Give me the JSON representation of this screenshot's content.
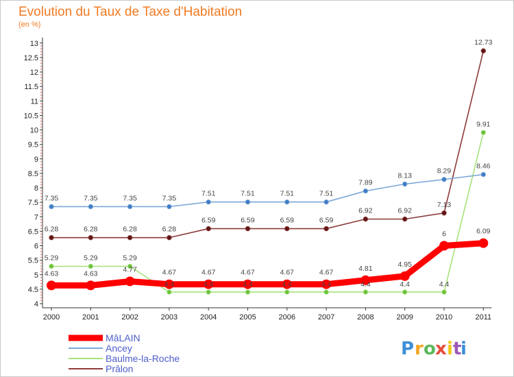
{
  "chart_data": {
    "type": "line",
    "title": "Evolution du Taux de Taxe d'Habitation",
    "unit_label": "(en %)",
    "x": [
      "2000",
      "2001",
      "2002",
      "2003",
      "2004",
      "2005",
      "2006",
      "2007",
      "2008",
      "2009",
      "2010",
      "2011"
    ],
    "ylim": [
      4,
      13
    ],
    "y_ticks": [
      "4",
      "4.5",
      "5",
      "5.5",
      "6",
      "6.5",
      "7",
      "7.5",
      "8",
      "8.5",
      "9",
      "9.5",
      "10",
      "10.5",
      "11",
      "11.5",
      "12",
      "12.5",
      "13"
    ],
    "grid": false,
    "legend_position": "bottom-left",
    "series": [
      {
        "name": "MâLAIN",
        "color": "#ff0000",
        "width": 9,
        "values": [
          4.63,
          4.63,
          4.77,
          4.67,
          4.67,
          4.67,
          4.67,
          4.67,
          4.81,
          4.95,
          6,
          6.09
        ],
        "labels": [
          "4.63",
          "4.63",
          "4.77",
          "4.67",
          "4.67",
          "4.67",
          "4.67",
          "4.67",
          "4.81",
          "4.95",
          "6",
          "6.09"
        ]
      },
      {
        "name": "Ancey",
        "color": "#7ba7d8",
        "width": 1.6,
        "values": [
          7.35,
          7.35,
          7.35,
          7.35,
          7.51,
          7.51,
          7.51,
          7.51,
          7.89,
          8.13,
          8.29,
          8.46
        ],
        "labels": [
          "7.35",
          "7.35",
          "7.35",
          "7.35",
          "7.51",
          "7.51",
          "7.51",
          "7.51",
          "7.89",
          "8.13",
          "8.29",
          "8.46"
        ]
      },
      {
        "name": "Baulme-la-Roche",
        "color": "#a6e27c",
        "width": 1.6,
        "values": [
          5.29,
          5.29,
          5.29,
          4.4,
          4.4,
          4.4,
          4.4,
          4.4,
          4.4,
          4.4,
          4.4,
          9.91
        ],
        "labels": [
          "5.29",
          "5.29",
          "5.29",
          "4.4",
          "4.4",
          "4.4",
          "4.4",
          "4.4",
          "4.4",
          "4.4",
          "4.4",
          "9.91"
        ]
      },
      {
        "name": "Prâlon",
        "color": "#8b3a3a",
        "width": 1.6,
        "values": [
          6.28,
          6.28,
          6.28,
          6.28,
          6.59,
          6.59,
          6.59,
          6.59,
          6.92,
          6.92,
          7.13,
          12.73
        ],
        "labels": [
          "6.28",
          "6.28",
          "6.28",
          "6.28",
          "6.59",
          "6.59",
          "6.59",
          "6.59",
          "6.92",
          "6.92",
          "7.13",
          "12.73"
        ]
      }
    ]
  },
  "branding": {
    "logo_letters": [
      "P",
      "r",
      "o",
      "x",
      "i",
      "t",
      "i"
    ],
    "logo_colors": [
      "#3d8fd6",
      "#f5a623",
      "#5cb85c",
      "#e74c3c",
      "#f5c518",
      "#9b59b6",
      "#3d8fd6"
    ]
  }
}
